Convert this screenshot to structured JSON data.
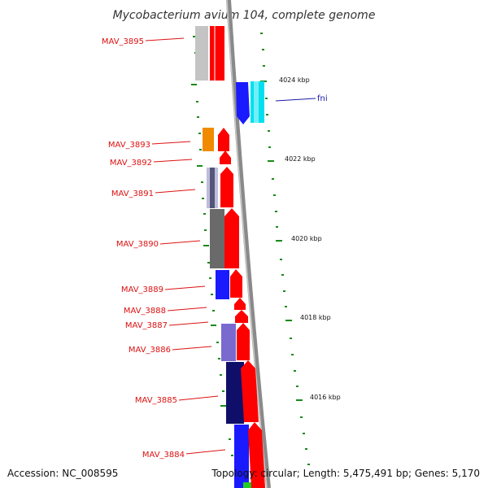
{
  "title": "Mycobacterium avium 104, complete genome",
  "footer": {
    "accession": "Accession: NC_008595",
    "topology": "Topology: circular; Length: 5,475,491 bp; Genes: 5,170"
  },
  "colors": {
    "label_red": "#dd1111",
    "label_blue": "#1a1aaa",
    "tick_green": "#1a8a1a",
    "backbone": "#8a8a8a"
  },
  "coordinate_labels": [
    "4024 kbp",
    "4022 kbp",
    "4020 kbp",
    "4018 kbp",
    "4016 kbp"
  ],
  "gene_labels": [
    "MAV_3895",
    "fni",
    "MAV_3893",
    "MAV_3892",
    "MAV_3891",
    "MAV_3890",
    "MAV_3889",
    "MAV_3888",
    "MAV_3887",
    "MAV_3886",
    "MAV_3885",
    "MAV_3884"
  ]
}
